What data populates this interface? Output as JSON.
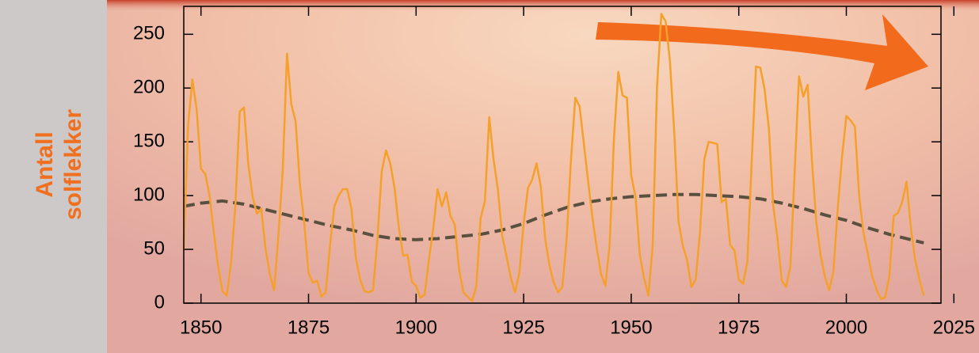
{
  "chart_data": {
    "type": "line",
    "y_label_lines": [
      "Antall",
      "solflekker"
    ],
    "xlim": [
      1846,
      2022
    ],
    "ylim": [
      0,
      276
    ],
    "xticks": [
      1850,
      1875,
      1900,
      1925,
      1950,
      1975,
      2000,
      2025
    ],
    "yticks": [
      0,
      50,
      100,
      150,
      200,
      250
    ],
    "series": [
      {
        "color": "#f5a02a",
        "dashed": false,
        "x": [
          1846,
          1847,
          1848,
          1849,
          1850,
          1851,
          1852,
          1853,
          1854,
          1855,
          1856,
          1857,
          1858,
          1859,
          1860,
          1861,
          1862,
          1863,
          1864,
          1865,
          1866,
          1867,
          1868,
          1869,
          1870,
          1871,
          1872,
          1873,
          1874,
          1875,
          1876,
          1877,
          1878,
          1879,
          1880,
          1881,
          1882,
          1883,
          1884,
          1885,
          1886,
          1887,
          1888,
          1889,
          1890,
          1891,
          1892,
          1893,
          1894,
          1895,
          1896,
          1897,
          1898,
          1899,
          1900,
          1901,
          1902,
          1903,
          1904,
          1905,
          1906,
          1907,
          1908,
          1909,
          1910,
          1911,
          1912,
          1913,
          1914,
          1915,
          1916,
          1917,
          1918,
          1919,
          1920,
          1921,
          1922,
          1923,
          1924,
          1925,
          1926,
          1927,
          1928,
          1929,
          1930,
          1931,
          1932,
          1933,
          1934,
          1935,
          1936,
          1937,
          1938,
          1939,
          1940,
          1941,
          1942,
          1943,
          1944,
          1945,
          1946,
          1947,
          1948,
          1949,
          1950,
          1951,
          1952,
          1953,
          1954,
          1955,
          1956,
          1957,
          1958,
          1959,
          1960,
          1961,
          1962,
          1963,
          1964,
          1965,
          1966,
          1967,
          1968,
          1969,
          1970,
          1971,
          1972,
          1973,
          1974,
          1975,
          1976,
          1977,
          1978,
          1979,
          1980,
          1981,
          1982,
          1983,
          1984,
          1985,
          1986,
          1987,
          1988,
          1989,
          1990,
          1991,
          1992,
          1993,
          1994,
          1995,
          1996,
          1997,
          1998,
          1999,
          2000,
          2001,
          2002,
          2003,
          2004,
          2005,
          2006,
          2007,
          2008,
          2009,
          2010,
          2011,
          2012,
          2013,
          2014,
          2015,
          2016,
          2017,
          2018
        ],
        "values": [
          50,
          165,
          208,
          180,
          125,
          120,
          100,
          65,
          34,
          11,
          7,
          38,
          91,
          178,
          182,
          129,
          99,
          83,
          88,
          51,
          27,
          12,
          63,
          123,
          232,
          185,
          169,
          110,
          75,
          28,
          19,
          21,
          6,
          10,
          54,
          90,
          100,
          106,
          106,
          87,
          42,
          22,
          11,
          10,
          12,
          59,
          122,
          142,
          130,
          107,
          70,
          44,
          45,
          20,
          16,
          5,
          8,
          41,
          70,
          106,
          90,
          103,
          81,
          73,
          31,
          10,
          6,
          2,
          16,
          79,
          95,
          173,
          134,
          106,
          63,
          44,
          24,
          10,
          28,
          74,
          107,
          115,
          130,
          108,
          60,
          35,
          19,
          10,
          15,
          60,
          133,
          191,
          183,
          148,
          113,
          79,
          51,
          27,
          16,
          55,
          154,
          215,
          193,
          191,
          119,
          99,
          45,
          23,
          7,
          54,
          201,
          269,
          262,
          225,
          159,
          76,
          53,
          40,
          15,
          22,
          67,
          134,
          150,
          149,
          148,
          94,
          97,
          54,
          49,
          22,
          18,
          39,
          131,
          220,
          219,
          199,
          162,
          91,
          60,
          21,
          15,
          34,
          123,
          211,
          192,
          203,
          133,
          76,
          45,
          25,
          12,
          29,
          88,
          136,
          174,
          170,
          164,
          99,
          65,
          46,
          25,
          13,
          4,
          5,
          25,
          81,
          84,
          94,
          113,
          70,
          40,
          22,
          7
        ]
      },
      {
        "color": "#5a5040",
        "dashed": true,
        "x": [
          1846,
          1850,
          1855,
          1860,
          1865,
          1870,
          1875,
          1880,
          1885,
          1890,
          1895,
          1900,
          1905,
          1910,
          1915,
          1920,
          1925,
          1930,
          1935,
          1940,
          1945,
          1950,
          1955,
          1960,
          1965,
          1970,
          1975,
          1980,
          1985,
          1990,
          1995,
          2000,
          2005,
          2010,
          2018
        ],
        "values": [
          90,
          93,
          95,
          92,
          87,
          82,
          77,
          72,
          68,
          63,
          60,
          59,
          60,
          62,
          64,
          68,
          74,
          82,
          89,
          94,
          97,
          99,
          100,
          101,
          101,
          100,
          99,
          97,
          93,
          88,
          82,
          77,
          70,
          64,
          56
        ]
      }
    ]
  }
}
